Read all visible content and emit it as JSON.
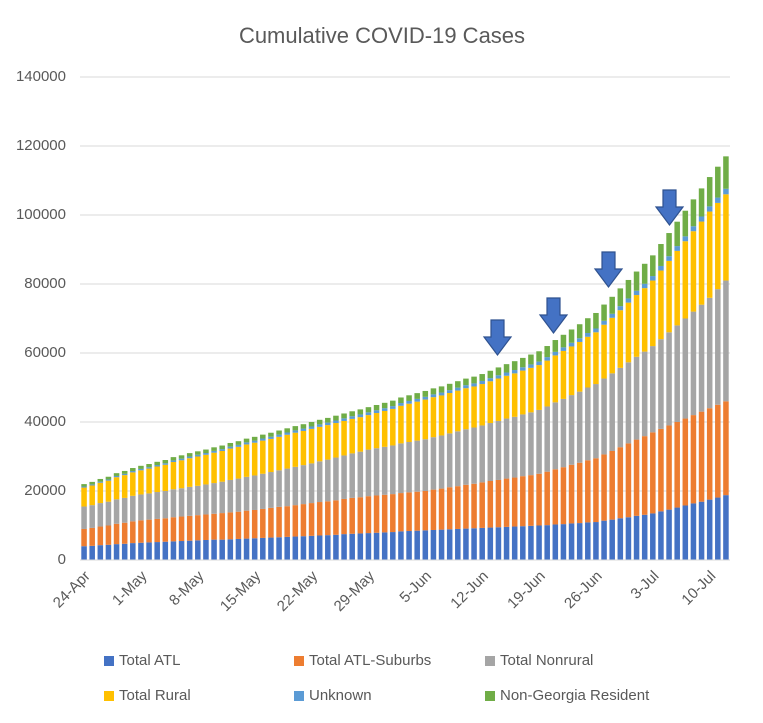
{
  "chart_data": {
    "type": "stacked_bar",
    "title": "Cumulative COVID-19 Cases",
    "categories": [
      "24-Apr",
      null,
      null,
      null,
      null,
      null,
      null,
      "1-May",
      null,
      null,
      null,
      null,
      null,
      null,
      "8-May",
      null,
      null,
      null,
      null,
      null,
      null,
      "15-May",
      null,
      null,
      null,
      null,
      null,
      null,
      "22-May",
      null,
      null,
      null,
      null,
      null,
      null,
      "29-May",
      null,
      null,
      null,
      null,
      null,
      null,
      "5-Jun",
      null,
      null,
      null,
      null,
      null,
      null,
      "12-Jun",
      null,
      null,
      null,
      null,
      null,
      null,
      "19-Jun",
      null,
      null,
      null,
      null,
      null,
      null,
      "26-Jun",
      null,
      null,
      null,
      null,
      null,
      null,
      "3-Jul",
      null,
      null,
      null,
      null,
      null,
      null,
      "10-Jul",
      null,
      null
    ],
    "series": [
      {
        "name": "Total ATL",
        "color": "#4472c4",
        "values": [
          4000,
          4100,
          4300,
          4400,
          4600,
          4700,
          4900,
          5000,
          5100,
          5200,
          5300,
          5400,
          5500,
          5600,
          5700,
          5800,
          5900,
          5900,
          6000,
          6100,
          6200,
          6300,
          6400,
          6500,
          6600,
          6700,
          6800,
          6900,
          7000,
          7100,
          7200,
          7300,
          7500,
          7600,
          7700,
          7800,
          7900,
          8000,
          8100,
          8300,
          8400,
          8500,
          8600,
          8700,
          8800,
          8900,
          9000,
          9100,
          9200,
          9300,
          9400,
          9500,
          9600,
          9700,
          9800,
          9900,
          10000,
          10100,
          10300,
          10400,
          10600,
          10700,
          10900,
          11000,
          11400,
          11700,
          12100,
          12400,
          12800,
          13100,
          13500,
          14100,
          14600,
          15200,
          15800,
          16400,
          16900,
          17500,
          18100,
          18800
        ]
      },
      {
        "name": "Total ATL-Suburbs",
        "color": "#ed7d31",
        "values": [
          5000,
          5200,
          5400,
          5600,
          5900,
          6100,
          6300,
          6500,
          6600,
          6700,
          6800,
          7000,
          7100,
          7200,
          7300,
          7400,
          7500,
          7700,
          7800,
          7900,
          8100,
          8200,
          8400,
          8600,
          8800,
          8900,
          9100,
          9300,
          9500,
          9700,
          9800,
          10000,
          10200,
          10400,
          10500,
          10700,
          10800,
          10900,
          11000,
          11100,
          11200,
          11300,
          11400,
          11700,
          11900,
          12200,
          12400,
          12700,
          12900,
          13200,
          13500,
          13700,
          14000,
          14200,
          14500,
          14700,
          15000,
          15500,
          16000,
          16500,
          17000,
          17500,
          18000,
          18500,
          19200,
          19900,
          20600,
          21400,
          22100,
          22800,
          23500,
          23900,
          24400,
          24800,
          25200,
          25600,
          26100,
          26500,
          26900,
          27200
        ]
      },
      {
        "name": "Total Nonrural",
        "color": "#a5a5a5",
        "values": [
          6500,
          6600,
          6800,
          6900,
          7100,
          7200,
          7400,
          7500,
          7600,
          7800,
          7900,
          8100,
          8200,
          8400,
          8500,
          8700,
          8900,
          9100,
          9400,
          9600,
          9800,
          10000,
          10200,
          10400,
          10600,
          10900,
          11100,
          11300,
          11500,
          11800,
          12100,
          12400,
          12600,
          12900,
          13200,
          13500,
          13700,
          13900,
          14100,
          14400,
          14600,
          14800,
          15000,
          15200,
          15400,
          15600,
          15900,
          16100,
          16300,
          16500,
          16800,
          17100,
          17400,
          17600,
          17900,
          18200,
          18500,
          18900,
          19400,
          19800,
          20200,
          20600,
          21100,
          21500,
          22000,
          22500,
          23000,
          23500,
          24000,
          24500,
          25000,
          26000,
          27000,
          28000,
          29000,
          30000,
          31000,
          32000,
          33500,
          35000
        ]
      },
      {
        "name": "Total Rural",
        "color": "#ffc000",
        "values": [
          5500,
          5700,
          5900,
          6100,
          6400,
          6600,
          6800,
          7000,
          7200,
          7400,
          7600,
          7900,
          8100,
          8300,
          8500,
          8600,
          8800,
          8900,
          9100,
          9200,
          9400,
          9500,
          9600,
          9600,
          9700,
          9800,
          9900,
          9900,
          10000,
          10000,
          10000,
          10000,
          10000,
          10000,
          10000,
          10000,
          10200,
          10400,
          10600,
          10900,
          11100,
          11300,
          11500,
          11600,
          11600,
          11700,
          11800,
          11900,
          11900,
          12000,
          12100,
          12300,
          12400,
          12600,
          12700,
          12900,
          13000,
          13300,
          13600,
          13900,
          14100,
          14400,
          14700,
          15000,
          15600,
          16100,
          16700,
          17300,
          17900,
          18400,
          19000,
          19900,
          20700,
          21600,
          22400,
          23300,
          24100,
          25000,
          25000,
          25000
        ]
      },
      {
        "name": "Unknown",
        "color": "#5b9bd5",
        "values": [
          300,
          310,
          330,
          340,
          360,
          370,
          390,
          400,
          410,
          430,
          440,
          460,
          470,
          490,
          500,
          510,
          530,
          540,
          560,
          570,
          590,
          600,
          610,
          630,
          640,
          660,
          670,
          690,
          700,
          710,
          730,
          740,
          760,
          770,
          790,
          800,
          800,
          800,
          800,
          800,
          800,
          800,
          800,
          810,
          830,
          840,
          860,
          870,
          890,
          900,
          910,
          930,
          940,
          960,
          970,
          990,
          1000,
          1010,
          1030,
          1040,
          1060,
          1070,
          1090,
          1100,
          1130,
          1160,
          1190,
          1210,
          1240,
          1270,
          1300,
          1330,
          1360,
          1390,
          1410,
          1440,
          1470,
          1500,
          1550,
          1600
        ]
      },
      {
        "name": "Non-Georgia Resident",
        "color": "#70ad47",
        "values": [
          700,
          730,
          760,
          790,
          810,
          840,
          870,
          900,
          910,
          930,
          940,
          960,
          970,
          990,
          1000,
          1010,
          1030,
          1040,
          1060,
          1070,
          1090,
          1100,
          1130,
          1160,
          1190,
          1210,
          1240,
          1270,
          1300,
          1330,
          1360,
          1390,
          1410,
          1440,
          1470,
          1500,
          1530,
          1560,
          1590,
          1610,
          1640,
          1670,
          1700,
          1740,
          1790,
          1830,
          1870,
          1910,
          1960,
          2000,
          2140,
          2290,
          2430,
          2570,
          2710,
          2860,
          3000,
          3210,
          3430,
          3640,
          3860,
          4070,
          4290,
          4500,
          4710,
          4930,
          5140,
          5360,
          5570,
          5790,
          6000,
          6360,
          6710,
          7070,
          7430,
          7790,
          8140,
          8500,
          8950,
          9400
        ]
      }
    ],
    "ylim": [
      0,
      140000
    ],
    "yticks": [
      0,
      20000,
      40000,
      60000,
      80000,
      100000,
      120000,
      140000
    ],
    "grid": true,
    "legend": "bottom"
  }
}
